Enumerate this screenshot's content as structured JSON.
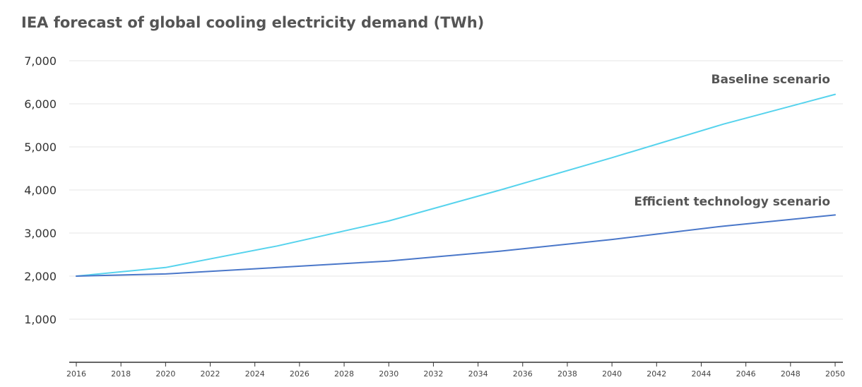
{
  "chart_data": {
    "type": "line",
    "title": "IEA forecast of global cooling electricity demand (TWh)",
    "xlabel": "",
    "ylabel": "",
    "xlim": [
      2016,
      2050
    ],
    "ylim": [
      0,
      7000
    ],
    "x_ticks": [
      "2016",
      "2018",
      "2020",
      "2022",
      "2024",
      "2026",
      "2028",
      "2030",
      "2032",
      "2034",
      "2036",
      "2038",
      "2040",
      "2042",
      "2044",
      "2046",
      "2048",
      "2050"
    ],
    "y_ticks": [
      "1,000",
      "2,000",
      "3,000",
      "4,000",
      "5,000",
      "6,000",
      "7,000"
    ],
    "grid": true,
    "series": [
      {
        "name": "Baseline scenario",
        "color": "#56d3ed",
        "x": [
          2016,
          2020,
          2025,
          2030,
          2035,
          2040,
          2045,
          2050
        ],
        "y": [
          2000,
          2200,
          2700,
          3280,
          4000,
          4750,
          5530,
          6220
        ]
      },
      {
        "name": "Efficient technology scenario",
        "color": "#4a77c9",
        "x": [
          2016,
          2020,
          2025,
          2030,
          2035,
          2040,
          2045,
          2050
        ],
        "y": [
          2000,
          2050,
          2200,
          2350,
          2580,
          2850,
          3160,
          3420
        ]
      }
    ]
  }
}
